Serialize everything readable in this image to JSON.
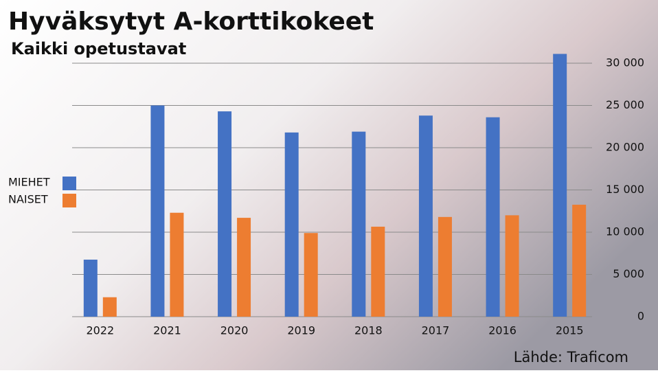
{
  "chart_data": {
    "type": "bar",
    "title": "Hyväksytyt A-korttikokeet",
    "subtitle": "Kaikki opetustavat",
    "categories": [
      "2022",
      "2021",
      "2020",
      "2019",
      "2018",
      "2017",
      "2016",
      "2015"
    ],
    "series": [
      {
        "name": "MIEHET",
        "color": "#4472c4",
        "values": [
          6750,
          25000,
          24300,
          21800,
          21900,
          23800,
          23600,
          31100
        ]
      },
      {
        "name": "NAISET",
        "color": "#ed7d31",
        "values": [
          2300,
          12300,
          11700,
          9900,
          10650,
          11800,
          12000,
          13250
        ]
      }
    ],
    "ylim": [
      0,
      30000
    ],
    "yticks": [
      0,
      {
        "value": 5000,
        "label": "5 000"
      },
      {
        "value": 10000,
        "label": "10 000"
      },
      {
        "value": 15000,
        "label": "15 000"
      },
      {
        "value": 20000,
        "label": "20 000"
      },
      {
        "value": 25000,
        "label": "25 000"
      },
      {
        "value": 30000,
        "label": "30 000"
      }
    ],
    "grid": true,
    "legend": "left",
    "source": "Lähde: Traficom"
  }
}
